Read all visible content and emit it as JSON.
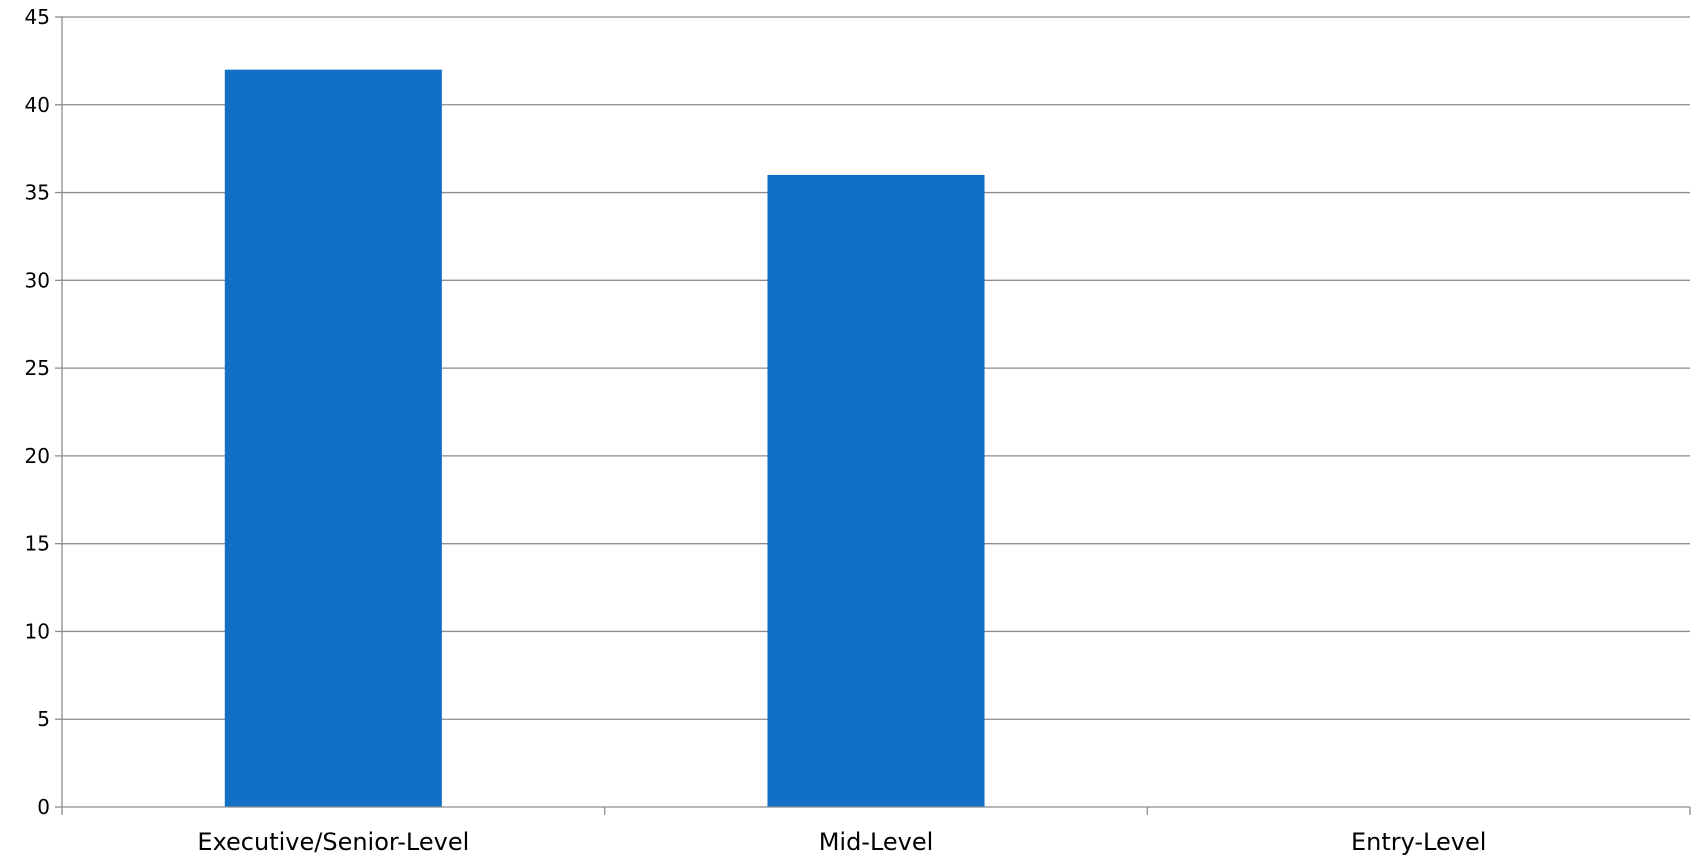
{
  "chart_data": {
    "type": "bar",
    "categories": [
      "Executive/Senior-Level",
      "Mid-Level",
      "Entry-Level"
    ],
    "values": [
      42,
      36,
      0
    ],
    "title": "",
    "xlabel": "",
    "ylabel": "",
    "ylim": [
      0,
      45
    ],
    "yticks": [
      0,
      5,
      10,
      15,
      20,
      25,
      30,
      35,
      40,
      45
    ],
    "grid": true,
    "legend": "none",
    "bar_color": "#1170C6",
    "grid_color": "#8C8C8C",
    "axis_color": "#8C8C8C"
  }
}
